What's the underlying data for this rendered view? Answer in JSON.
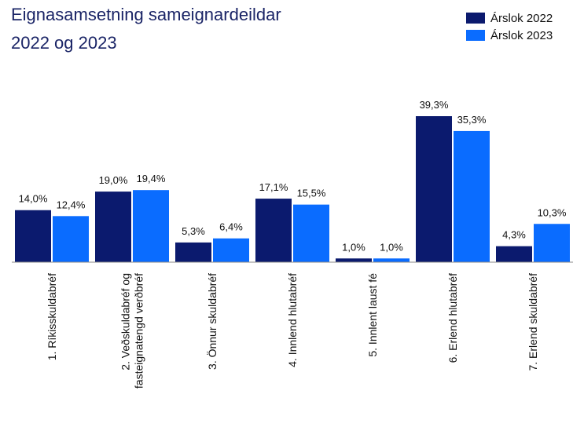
{
  "chart_data": {
    "type": "bar",
    "title": [
      "Eignasamsetning sameignardeildar",
      "2022 og 2023"
    ],
    "categories": [
      "1. Ríkisskuldabréf",
      [
        "2. Veðskuldabréf og",
        "fasteignatengd verðbréf"
      ],
      "3. Önnur skuldabréf",
      "4. Innlend hlutabréf",
      "5. Innlent laust fé",
      "6. Erlend hlutabréf",
      "7. Erlend skuldabréf"
    ],
    "series": [
      {
        "name": "Árslok 2022",
        "color": "#0b1a6e",
        "values": [
          14.0,
          19.0,
          5.3,
          17.1,
          1.0,
          39.3,
          4.3
        ],
        "value_labels": [
          "14,0%",
          "19,0%",
          "5,3%",
          "17,1%",
          "1,0%",
          "39,3%",
          "4,3%"
        ]
      },
      {
        "name": "Árslok 2023",
        "color": "#0a6cff",
        "values": [
          12.4,
          19.4,
          6.4,
          15.5,
          1.0,
          35.3,
          10.3
        ],
        "value_labels": [
          "12,4%",
          "19,4%",
          "6,4%",
          "15,5%",
          "1,0%",
          "35,3%",
          "10,3%"
        ]
      }
    ],
    "legend": "top-right"
  }
}
